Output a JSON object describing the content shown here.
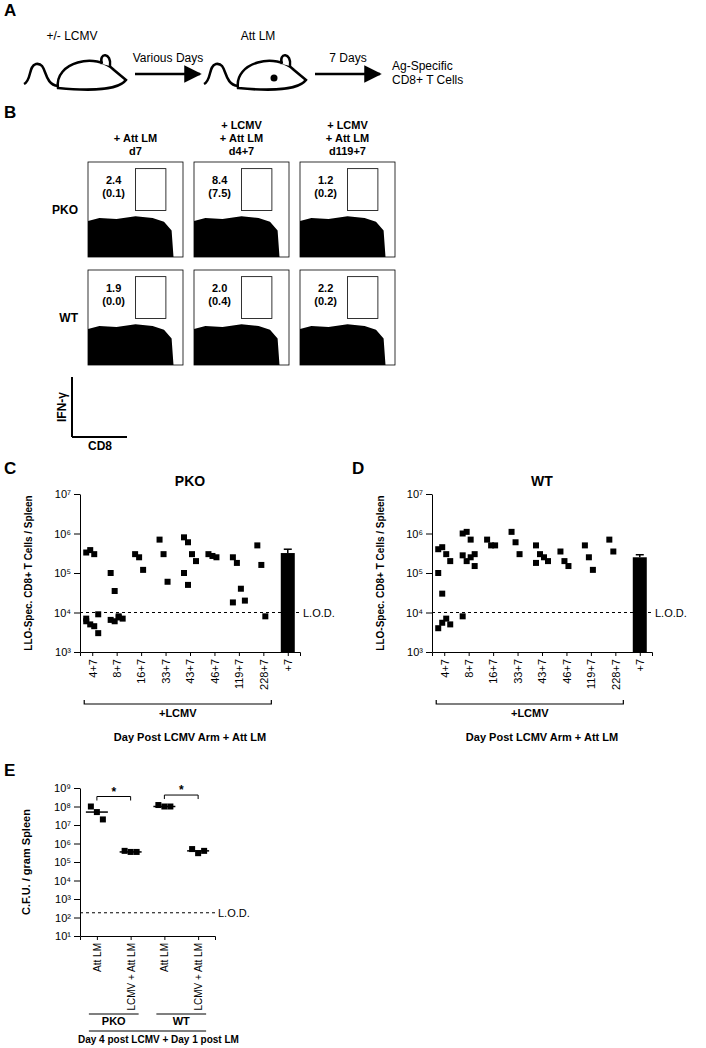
{
  "panel_labels": [
    "A",
    "B",
    "C",
    "D",
    "E"
  ],
  "schematic": {
    "infection": "+/- LCMV",
    "interval": "Various Days",
    "challenge": "Att LM",
    "wait": "7 Days",
    "readout": [
      "Ag-Specific",
      "CD8+ T Cells"
    ]
  },
  "flow_plots": {
    "columns": [
      [
        "+ Att LM",
        "d7"
      ],
      [
        "+ LCMV",
        "+ Att LM",
        "d4+7"
      ],
      [
        "+ LCMV",
        "+ Att LM",
        "d119+7"
      ]
    ],
    "rows": [
      "PKO",
      "WT"
    ],
    "gate_percent": [
      [
        "2.4",
        "8.4",
        "1.2"
      ],
      [
        "1.9",
        "2.0",
        "2.2"
      ]
    ],
    "background_percent": [
      [
        "(0.1)",
        "(7.5)",
        "(0.2)"
      ],
      [
        "(0.0)",
        "(0.4)",
        "(0.2)"
      ]
    ],
    "y_label": "IFN-γ",
    "x_label": "CD8"
  },
  "chart_data": [
    {
      "type": "scatter",
      "title": "PKO",
      "categories": [
        "4+7",
        "8+7",
        "16+7",
        "33+7",
        "43+7",
        "46+7",
        "119+7",
        "228+7",
        "+7"
      ],
      "series": [
        {
          "type": "scatter",
          "marker": "square",
          "color": "#000000",
          "values": [
            [
              330000,
              380000,
              300000,
              9000,
              7000,
              5000,
              4500,
              3000,
              6000
            ],
            [
              100000,
              35000,
              8000,
              7000,
              6500,
              6000,
              7500
            ],
            [
              300000,
              250000,
              120000
            ],
            [
              700000,
              300000,
              60000
            ],
            [
              800000,
              600000,
              300000,
              200000,
              100000,
              50000
            ],
            [
              300000,
              270000,
              250000
            ],
            [
              250000,
              180000,
              40000,
              20000,
              18000
            ],
            [
              500000,
              160000,
              8000
            ],
            null
          ]
        },
        {
          "type": "bar",
          "color": "#000000",
          "values": [
            null,
            null,
            null,
            null,
            null,
            null,
            null,
            null,
            320000
          ],
          "errors": [
            null,
            null,
            null,
            null,
            null,
            null,
            null,
            null,
            80000
          ]
        }
      ],
      "group_label": "+LCMV",
      "reference_line": {
        "value": 10000,
        "label": "L.O.D.",
        "line_style": "dashed"
      },
      "x_label": "Day Post LCMV Arm + Att LM",
      "y_label": "LLO-Spec. CD8+ T Cells / Spleen",
      "log": "y",
      "ylim": [
        1000,
        10000000
      ],
      "yticks": [
        {
          "value": 1000,
          "label": "10³"
        },
        {
          "value": 10000,
          "label": "10⁴"
        },
        {
          "value": 100000,
          "label": "10⁵"
        },
        {
          "value": 1000000,
          "label": "10⁶"
        },
        {
          "value": 10000000,
          "label": "10⁷"
        }
      ]
    },
    {
      "type": "scatter",
      "title": "WT",
      "categories": [
        "4+7",
        "8+7",
        "16+7",
        "33+7",
        "43+7",
        "46+7",
        "119+7",
        "228+7",
        "+7"
      ],
      "series": [
        {
          "type": "scatter",
          "marker": "square",
          "color": "#000000",
          "values": [
            [
              400000,
              450000,
              300000,
              200000,
              100000,
              30000,
              7000,
              5000,
              4000,
              5500
            ],
            [
              1000000,
              1100000,
              700000,
              300000,
              280000,
              200000,
              250000,
              150000,
              8000
            ],
            [
              700000,
              500000,
              500000
            ],
            [
              1100000,
              600000,
              300000
            ],
            [
              500000,
              300000,
              250000,
              200000,
              180000
            ],
            [
              350000,
              200000,
              150000
            ],
            [
              500000,
              250000,
              120000
            ],
            [
              700000,
              350000
            ],
            null
          ]
        },
        {
          "type": "bar",
          "color": "#000000",
          "values": [
            null,
            null,
            null,
            null,
            null,
            null,
            null,
            null,
            250000
          ],
          "errors": [
            null,
            null,
            null,
            null,
            null,
            null,
            null,
            null,
            40000
          ]
        }
      ],
      "group_label": "+LCMV",
      "reference_line": {
        "value": 10000,
        "label": "L.O.D.",
        "line_style": "dashed"
      },
      "x_label": "Day Post LCMV Arm + Att LM",
      "y_label": "LLO-Spec. CD8+ T Cells / Spleen",
      "log": "y",
      "ylim": [
        1000,
        10000000
      ],
      "yticks": [
        {
          "value": 1000,
          "label": "10³"
        },
        {
          "value": 10000,
          "label": "10⁴"
        },
        {
          "value": 100000,
          "label": "10⁵"
        },
        {
          "value": 1000000,
          "label": "10⁶"
        },
        {
          "value": 10000000,
          "label": "10⁷"
        }
      ]
    },
    {
      "type": "scatter",
      "marker": "square",
      "color": "#000000",
      "categories": [
        "Att LM",
        "LCMV + Att LM",
        "Att LM",
        "LCMV + Att LM"
      ],
      "values": [
        [
          100000000,
          50000000,
          20000000
        ],
        [
          400000,
          350000,
          350000
        ],
        [
          120000000,
          100000000,
          100000000
        ],
        [
          500000,
          300000,
          400000
        ]
      ],
      "medians": [
        50000000,
        350000,
        100000000,
        400000
      ],
      "groups": [
        "PKO",
        "WT"
      ],
      "significance": [
        "*",
        "*"
      ],
      "footnote": "Day 4 post LCMV + Day 1 post LM",
      "reference_line": {
        "value": 180,
        "label": "L.O.D.",
        "line_style": "dashed"
      },
      "y_label": "C.F.U. / gram Spleen",
      "log": "y",
      "ylim": [
        10,
        1000000000
      ],
      "yticks": [
        {
          "value": 10,
          "label": "10¹"
        },
        {
          "value": 100,
          "label": "10²"
        },
        {
          "value": 1000,
          "label": "10³"
        },
        {
          "value": 10000,
          "label": "10⁴"
        },
        {
          "value": 100000,
          "label": "10⁵"
        },
        {
          "value": 1000000,
          "label": "10⁶"
        },
        {
          "value": 10000000,
          "label": "10⁷"
        },
        {
          "value": 100000000,
          "label": "10⁸"
        },
        {
          "value": 1000000000,
          "label": "10⁹"
        }
      ]
    }
  ]
}
